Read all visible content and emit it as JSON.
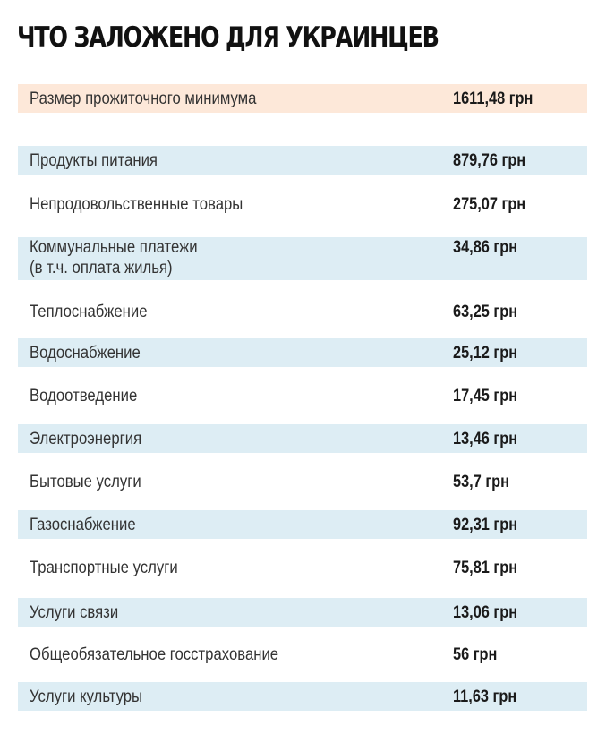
{
  "title": "ЧТО ЗАЛОЖЕНО ДЛЯ УКРАИНЦЕВ",
  "colors": {
    "highlight_row": "#fde8d9",
    "band_row": "#ddedf4"
  },
  "total": {
    "label": "Размер прожиточного минимума",
    "value": "1611,48 грн"
  },
  "rows": [
    {
      "label": "Продукты питания",
      "value": "879,76 грн"
    },
    {
      "label": "Непродовольственные товары",
      "value": "275,07 грн"
    },
    {
      "label": "Коммунальные платежи",
      "label2": "(в т.ч. оплата жилья)",
      "value": "34,86 грн"
    },
    {
      "label": "Теплоснабжение",
      "value": "63,25 грн"
    },
    {
      "label": "Водоснабжение",
      "value": "25,12 грн"
    },
    {
      "label": "Водоотведение",
      "value": "17,45 грн"
    },
    {
      "label": "Электроэнергия",
      "value": "13,46 грн"
    },
    {
      "label": "Бытовые услуги",
      "value": "53,7 грн"
    },
    {
      "label": "Газоснабжение",
      "value": "92,31 грн"
    },
    {
      "label": "Транспортные услуги",
      "value": "75,81 грн"
    },
    {
      "label": "Услуги связи",
      "value": "13,06 грн"
    },
    {
      "label": "Общеобязательное госстрахование",
      "value": "56 грн"
    },
    {
      "label": "Услуги культуры",
      "value": "11,63 грн"
    }
  ]
}
